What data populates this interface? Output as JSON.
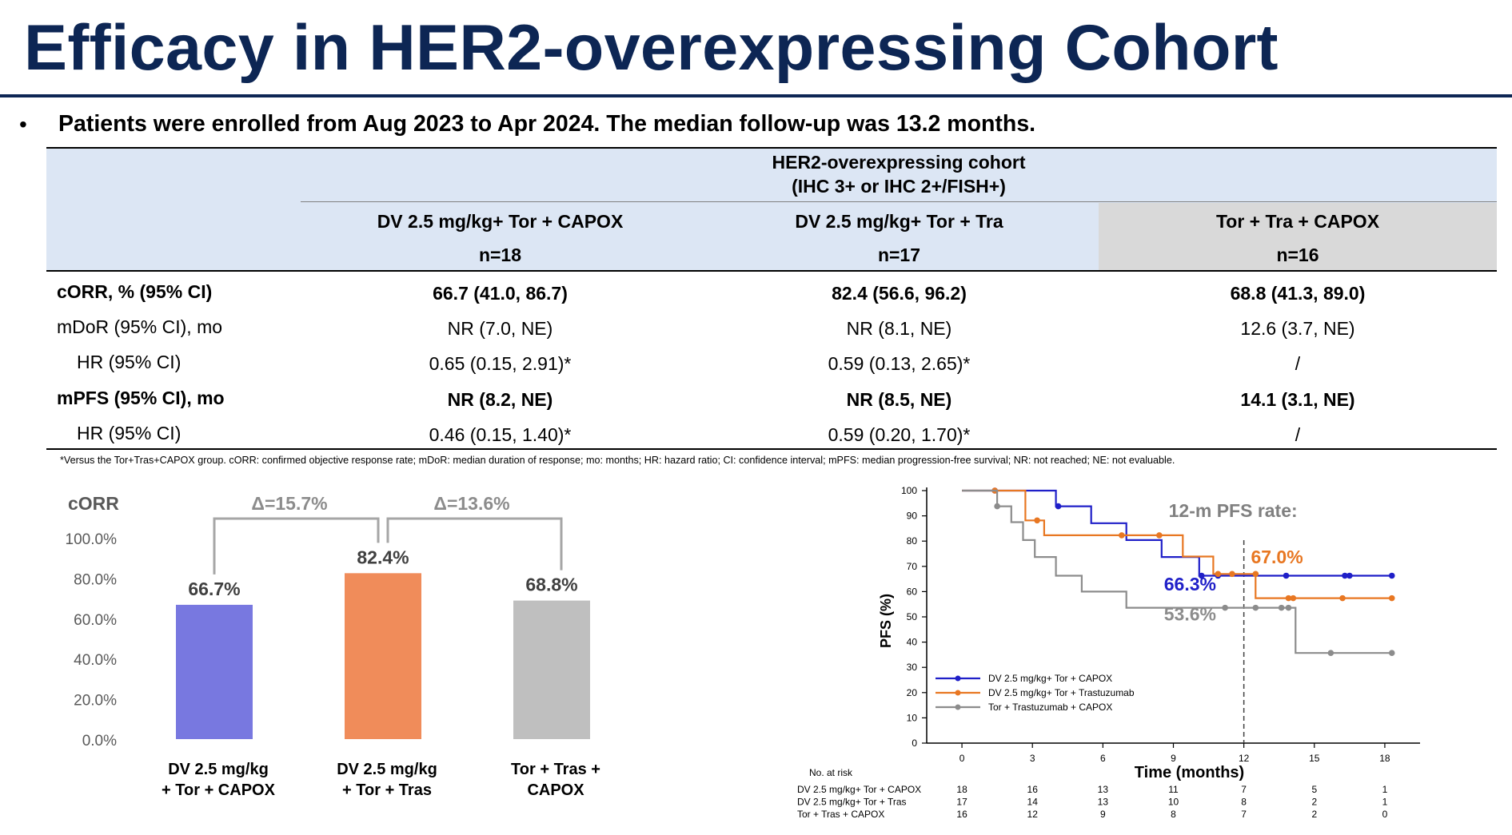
{
  "title": "Efficacy in HER2-overexpressing Cohort",
  "bullet": "Patients were enrolled from Aug 2023 to Apr 2024. The median follow-up was 13.2 months.",
  "bullet_marker": "•",
  "table": {
    "group_header_line1": "HER2-overexpressing cohort",
    "group_header_line2": "(IHC 3+ or IHC 2+/FISH+)",
    "columns": [
      {
        "name": "DV 2.5 mg/kg+ Tor + CAPOX",
        "n": "n=18"
      },
      {
        "name": "DV 2.5 mg/kg+ Tor + Tra",
        "n": "n=17"
      },
      {
        "name": "Tor + Tra + CAPOX",
        "n": "n=16"
      }
    ],
    "rows": [
      {
        "label": "cORR, % (95% CI)",
        "values": [
          "66.7 (41.0, 86.7)",
          "82.4 (56.6, 96.2)",
          "68.8 (41.3, 89.0)"
        ]
      },
      {
        "label": "mDoR (95% CI), mo",
        "values": [
          "NR (7.0, NE)",
          "NR (8.1, NE)",
          "12.6 (3.7, NE)"
        ]
      },
      {
        "label": "HR (95% CI)",
        "values": [
          "0.65 (0.15, 2.91)*",
          "0.59 (0.13, 2.65)*",
          "/"
        ]
      },
      {
        "label": "mPFS (95% CI), mo",
        "values": [
          "NR (8.2, NE)",
          "NR (8.5, NE)",
          "14.1 (3.1, NE)"
        ]
      },
      {
        "label": "HR (95% CI)",
        "values": [
          "0.46 (0.15, 1.40)*",
          "0.59 (0.20, 1.70)*",
          "/"
        ]
      }
    ]
  },
  "footnote": "*Versus the Tor+Tras+CAPOX group. cORR: confirmed objective response rate; mDoR: median duration of response; mo: months; HR: hazard ratio; CI: confidence interval; mPFS: median progression-free survival; NR: not reached; NE: not evaluable.",
  "colors": {
    "title": "#0d2654",
    "header_blue": "#dce6f4",
    "header_gray": "#d9d9d9",
    "bar_purple": "#7878e0",
    "bar_orange": "#f08c5a",
    "bar_gray": "#bfbfbf",
    "km_blue": "#1f1fc8",
    "km_orange": "#e87722",
    "km_gray": "#8c8c8c"
  },
  "chart_data": [
    {
      "type": "bar",
      "title": "cORR",
      "categories": [
        [
          "DV 2.5 mg/kg",
          "+ Tor + CAPOX"
        ],
        [
          "DV 2.5 mg/kg",
          "+ Tor + Tras"
        ],
        [
          "Tor + Tras +",
          "CAPOX"
        ]
      ],
      "values": [
        66.7,
        82.4,
        68.8
      ],
      "value_labels": [
        "66.7%",
        "82.4%",
        "68.8%"
      ],
      "bar_colors": [
        "#7878e0",
        "#f08c5a",
        "#bfbfbf"
      ],
      "yticks": [
        "0.0%",
        "20.0%",
        "40.0%",
        "60.0%",
        "80.0%",
        "100.0%"
      ],
      "ylim": [
        0,
        100
      ],
      "delta_labels": [
        "Δ=15.7%",
        "Δ=13.6%"
      ],
      "grid": false
    },
    {
      "type": "line",
      "step": true,
      "ylabel": "PFS (%)",
      "xlabel": "Time (months)",
      "xlim": [
        -1.5,
        19.5
      ],
      "ylim": [
        0,
        100
      ],
      "xticks": [
        0,
        3,
        6,
        9,
        12,
        15,
        18
      ],
      "yticks": [
        0,
        10,
        20,
        30,
        40,
        50,
        60,
        70,
        80,
        90,
        100
      ],
      "reference_line_x": 12,
      "annotation_title": "12-m PFS rate:",
      "legend_position": "bottom-left",
      "series": [
        {
          "name": "DV 2.5 mg/kg+ Tor + CAPOX",
          "color": "#1f1fc8",
          "label": "66.3%",
          "steps": [
            [
              0,
              100
            ],
            [
              4,
              100
            ],
            [
              4,
              93.8
            ],
            [
              5.5,
              93.8
            ],
            [
              5.5,
              87.1
            ],
            [
              7,
              87.1
            ],
            [
              7,
              80.4
            ],
            [
              8.5,
              80.4
            ],
            [
              8.5,
              73.7
            ],
            [
              10.1,
              73.7
            ],
            [
              10.1,
              66.3
            ],
            [
              18.3,
              66.3
            ]
          ],
          "censor": [
            [
              1.4,
              100
            ],
            [
              4.1,
              93.8
            ],
            [
              10.2,
              66.3
            ],
            [
              10.9,
              66.3
            ],
            [
              13.8,
              66.3
            ],
            [
              16.3,
              66.3
            ],
            [
              16.5,
              66.3
            ],
            [
              18.3,
              66.3
            ]
          ]
        },
        {
          "name": "DV 2.5 mg/kg+ Tor + Trastuzumab",
          "color": "#e87722",
          "label": "67.0%",
          "steps": [
            [
              0,
              100
            ],
            [
              2.7,
              100
            ],
            [
              2.7,
              88.2
            ],
            [
              3.5,
              88.2
            ],
            [
              3.5,
              82.3
            ],
            [
              9.4,
              82.3
            ],
            [
              9.4,
              73.9
            ],
            [
              10.7,
              73.9
            ],
            [
              10.7,
              67.0
            ],
            [
              12.5,
              67.0
            ],
            [
              12.5,
              57.4
            ],
            [
              18.3,
              57.4
            ]
          ],
          "censor": [
            [
              1.4,
              100
            ],
            [
              3.2,
              88.2
            ],
            [
              6.8,
              82.3
            ],
            [
              8.4,
              82.3
            ],
            [
              10.9,
              67.0
            ],
            [
              11.5,
              67.0
            ],
            [
              12.5,
              67.0
            ],
            [
              13.9,
              57.4
            ],
            [
              14.1,
              57.4
            ],
            [
              16.2,
              57.4
            ],
            [
              18.3,
              57.4
            ]
          ]
        },
        {
          "name": "Tor + Trastuzumab + CAPOX",
          "color": "#8c8c8c",
          "label": "53.6%",
          "steps": [
            [
              0,
              100
            ],
            [
              1.5,
              100
            ],
            [
              1.5,
              93.8
            ],
            [
              2.1,
              93.8
            ],
            [
              2.1,
              87.5
            ],
            [
              2.6,
              87.5
            ],
            [
              2.6,
              80.4
            ],
            [
              3.1,
              80.4
            ],
            [
              3.1,
              73.7
            ],
            [
              4,
              73.7
            ],
            [
              4,
              66.3
            ],
            [
              5.1,
              66.3
            ],
            [
              5.1,
              60.0
            ],
            [
              7,
              60.0
            ],
            [
              7,
              53.6
            ],
            [
              14.2,
              53.6
            ],
            [
              14.2,
              35.7
            ],
            [
              18.3,
              35.7
            ]
          ],
          "censor": [
            [
              1.5,
              93.8
            ],
            [
              11.2,
              53.6
            ],
            [
              12.5,
              53.6
            ],
            [
              13.6,
              53.6
            ],
            [
              13.9,
              53.6
            ],
            [
              15.7,
              35.7
            ],
            [
              18.3,
              35.7
            ]
          ]
        }
      ],
      "risk_table": {
        "title": "No. at risk",
        "times": [
          0,
          3,
          6,
          9,
          12,
          15,
          18
        ],
        "rows": [
          {
            "label": "DV 2.5 mg/kg+ Tor + CAPOX",
            "counts": [
              "18",
              "16",
              "13",
              "11",
              "7",
              "5",
              "1"
            ]
          },
          {
            "label": "DV 2.5 mg/kg+ Tor + Tras",
            "counts": [
              "17",
              "14",
              "13",
              "10",
              "8",
              "2",
              "1"
            ]
          },
          {
            "label": "Tor + Tras + CAPOX",
            "counts": [
              "16",
              "12",
              "9",
              "8",
              "7",
              "2",
              "0"
            ]
          }
        ]
      }
    }
  ]
}
